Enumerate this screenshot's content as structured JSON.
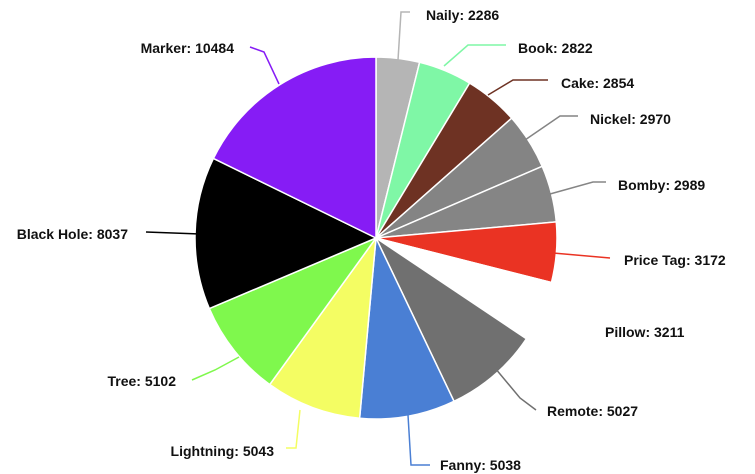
{
  "chart_data": {
    "type": "pie",
    "title": "",
    "slices": [
      {
        "label": "Naily",
        "value": 2286,
        "color": "#b5b5b5",
        "text": "Naily: 2286"
      },
      {
        "label": "Book",
        "value": 2822,
        "color": "#7ff7a6",
        "text": "Book: 2822"
      },
      {
        "label": "Cake",
        "value": 2854,
        "color": "#6e3223",
        "text": "Cake: 2854"
      },
      {
        "label": "Nickel",
        "value": 2970,
        "color": "#848484",
        "text": "Nickel: 2970"
      },
      {
        "label": "Bomby",
        "value": 2989,
        "color": "#858585",
        "text": "Bomby: 2989"
      },
      {
        "label": "Price Tag",
        "value": 3172,
        "color": "#ea3323",
        "text": "Price Tag: 3172"
      },
      {
        "label": "Pillow",
        "value": 3211,
        "color": "#ffffff",
        "text": "Pillow: 3211"
      },
      {
        "label": "Remote",
        "value": 5027,
        "color": "#707070",
        "text": "Remote: 5027"
      },
      {
        "label": "Fanny",
        "value": 5038,
        "color": "#4a7fd4",
        "text": "Fanny: 5038"
      },
      {
        "label": "Lightning",
        "value": 5043,
        "color": "#f4fd63",
        "text": "Lightning: 5043"
      },
      {
        "label": "Tree",
        "value": 5102,
        "color": "#7ff84d",
        "text": "Tree: 5102"
      },
      {
        "label": "Black Hole",
        "value": 8037,
        "color": "#000000",
        "text": "Black Hole: 8037"
      },
      {
        "label": "Marker",
        "value": 10484,
        "color": "#861cf5",
        "text": "Marker: 10484"
      }
    ],
    "start_angle": "top",
    "direction": "clockwise",
    "legend": "none"
  }
}
